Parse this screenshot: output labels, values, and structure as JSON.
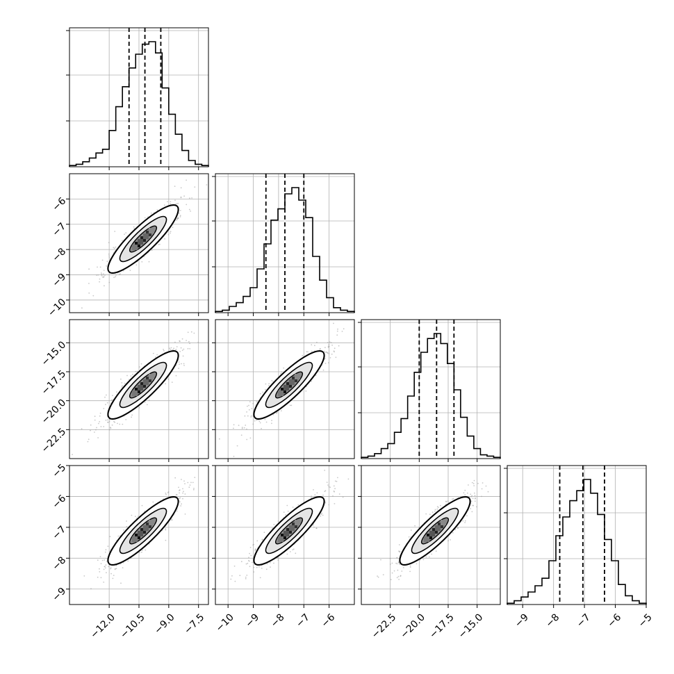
{
  "chart_data": {
    "type": "corner",
    "parameters": 4,
    "title": "",
    "diagonal_type": "histogram",
    "off_diagonal_type": "scatter+2d-histogram+contours",
    "grid": true,
    "quantile_lines": "dashed",
    "colors": {
      "line": "#000000",
      "points": "#9a9a9a",
      "grid": "#b0b0b0",
      "axis": "#000000"
    },
    "dims": [
      {
        "range": [
          -14,
          -7
        ],
        "ticks": [
          "−12.0",
          "−10.5",
          "−9.0",
          "−7.5"
        ],
        "tick_values": [
          -12.0,
          -10.5,
          -9.0,
          -7.5
        ],
        "quantiles": [
          -11.0,
          -10.2,
          -9.4
        ],
        "hist": [
          0.01,
          0.02,
          0.04,
          0.07,
          0.11,
          0.14,
          0.29,
          0.48,
          0.64,
          0.79,
          0.9,
          0.98,
          1.0,
          0.91,
          0.63,
          0.42,
          0.26,
          0.13,
          0.05,
          0.02,
          0.01
        ]
      },
      {
        "range": [
          -10.5,
          -5
        ],
        "ticks": [
          "−10",
          "−9",
          "−8",
          "−7",
          "−6"
        ],
        "tick_values": [
          -10,
          -9,
          -8,
          -7,
          -6
        ],
        "quantiles": [
          -8.5,
          -7.75,
          -7.0
        ],
        "hist": [
          0.01,
          0.02,
          0.05,
          0.08,
          0.13,
          0.2,
          0.35,
          0.55,
          0.74,
          0.83,
          0.95,
          1.0,
          0.9,
          0.76,
          0.45,
          0.26,
          0.12,
          0.04,
          0.02,
          0.01
        ]
      },
      {
        "range": [
          -25,
          -13
        ],
        "ticks": [
          "−22.5",
          "−20.0",
          "−17.5",
          "−15.0"
        ],
        "tick_values": [
          -22.5,
          -20.0,
          -17.5,
          -15.0
        ],
        "quantiles": [
          -20.0,
          -18.5,
          -17.0
        ],
        "hist": [
          0.01,
          0.02,
          0.04,
          0.08,
          0.12,
          0.21,
          0.32,
          0.5,
          0.69,
          0.85,
          0.96,
          1.0,
          0.92,
          0.76,
          0.55,
          0.33,
          0.18,
          0.08,
          0.03,
          0.02,
          0.01
        ]
      },
      {
        "range": [
          -9.5,
          -5
        ],
        "ticks": [
          "−9",
          "−8",
          "−7",
          "−6",
          "−5"
        ],
        "tick_values": [
          -9,
          -8,
          -7,
          -6,
          -5
        ],
        "quantiles": [
          -7.8,
          -7.05,
          -6.35
        ],
        "hist": [
          0.01,
          0.03,
          0.06,
          0.1,
          0.15,
          0.21,
          0.35,
          0.55,
          0.7,
          0.83,
          0.91,
          1.0,
          0.89,
          0.72,
          0.52,
          0.35,
          0.16,
          0.07,
          0.03,
          0.01
        ]
      }
    ],
    "y_ticks": {
      "1": [
        "−6",
        "−7",
        "−8",
        "−9",
        "−10"
      ],
      "2": [
        "−15.0",
        "−17.5",
        "−20.0",
        "−22.5"
      ],
      "3": [
        "−5",
        "−6",
        "−7",
        "−8",
        "−9"
      ]
    },
    "y_tick_values": {
      "1": [
        -6,
        -7,
        -8,
        -9,
        -10
      ],
      "2": [
        -15.0,
        -17.5,
        -20.0,
        -22.5
      ],
      "3": [
        -5,
        -6,
        -7,
        -8,
        -9
      ]
    },
    "correlation_approx": 0.95
  }
}
